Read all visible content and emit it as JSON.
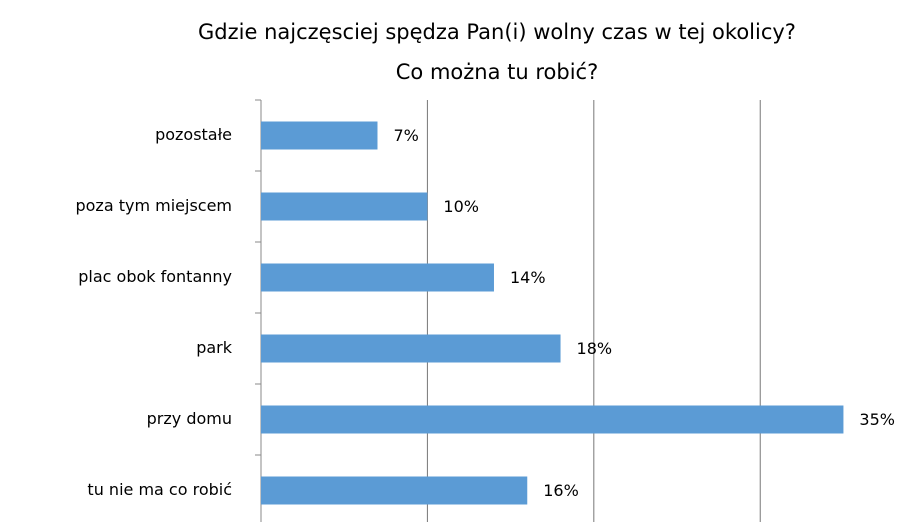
{
  "chart_data": {
    "type": "bar",
    "orientation": "horizontal",
    "title": [
      "Gdzie najczęsciej spędza  Pan(i) wolny czas w tej okolicy?",
      "Co można tu robić?"
    ],
    "categories": [
      "pozostałe",
      "poza tym miejscem",
      "plac obok fontanny",
      "park",
      "przy domu",
      "tu nie ma co robić"
    ],
    "values": [
      7,
      10,
      14,
      18,
      35,
      16
    ],
    "value_labels": [
      "7%",
      "10%",
      "14%",
      "18%",
      "35%",
      "16%"
    ],
    "color": "#5b9bd5",
    "xlim": [
      0,
      39
    ],
    "xticks": [
      0,
      10,
      20,
      30
    ],
    "grid": true
  }
}
